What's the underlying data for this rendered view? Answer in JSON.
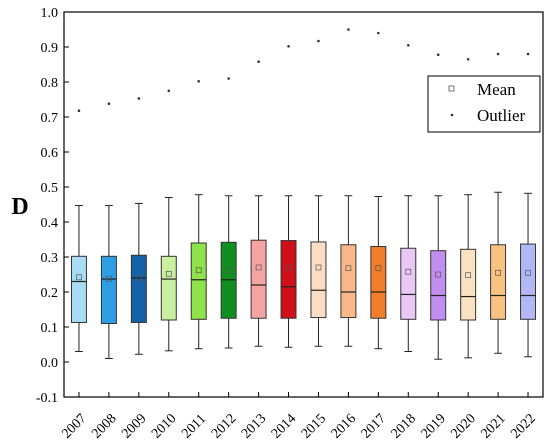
{
  "chart_data": {
    "type": "box",
    "ylabel": "D",
    "ylim": [
      -0.1,
      1.0
    ],
    "yticks": [
      "-0.1",
      "0.0",
      "0.1",
      "0.2",
      "0.3",
      "0.4",
      "0.5",
      "0.6",
      "0.7",
      "0.8",
      "0.9",
      "1.0"
    ],
    "categories": [
      "2007",
      "2008",
      "2009",
      "2010",
      "2011",
      "2012",
      "2013",
      "2014",
      "2015",
      "2016",
      "2017",
      "2018",
      "2019",
      "2020",
      "2021",
      "2022"
    ],
    "boxes": [
      {
        "category": "2007",
        "whisker_low": 0.03,
        "q1": 0.113,
        "median": 0.23,
        "q3": 0.302,
        "whisker_high": 0.447,
        "mean": 0.242,
        "outlier": 0.718,
        "color": "#a8dcf5"
      },
      {
        "category": "2008",
        "whisker_low": 0.01,
        "q1": 0.11,
        "median": 0.237,
        "q3": 0.302,
        "whisker_high": 0.447,
        "mean": 0.238,
        "outlier": 0.738,
        "color": "#2e9fe6"
      },
      {
        "category": "2009",
        "whisker_low": 0.022,
        "q1": 0.113,
        "median": 0.24,
        "q3": 0.305,
        "whisker_high": 0.453,
        "mean": 0.24,
        "outlier": 0.753,
        "color": "#1462a8"
      },
      {
        "category": "2010",
        "whisker_low": 0.032,
        "q1": 0.12,
        "median": 0.237,
        "q3": 0.302,
        "whisker_high": 0.47,
        "mean": 0.252,
        "outlier": 0.775,
        "color": "#c9efa0"
      },
      {
        "category": "2011",
        "whisker_low": 0.038,
        "q1": 0.122,
        "median": 0.235,
        "q3": 0.34,
        "whisker_high": 0.478,
        "mean": 0.262,
        "outlier": 0.802,
        "color": "#8ee24a"
      },
      {
        "category": "2012",
        "whisker_low": 0.04,
        "q1": 0.125,
        "median": 0.235,
        "q3": 0.342,
        "whisker_high": 0.475,
        "mean": 0.262,
        "outlier": 0.81,
        "color": "#0f8f1f"
      },
      {
        "category": "2013",
        "whisker_low": 0.045,
        "q1": 0.125,
        "median": 0.22,
        "q3": 0.348,
        "whisker_high": 0.475,
        "mean": 0.27,
        "outlier": 0.858,
        "color": "#f6a3a3"
      },
      {
        "category": "2014",
        "whisker_low": 0.042,
        "q1": 0.125,
        "median": 0.215,
        "q3": 0.347,
        "whisker_high": 0.475,
        "mean": 0.27,
        "outlier": 0.902,
        "color": "#d01018"
      },
      {
        "category": "2015",
        "whisker_low": 0.045,
        "q1": 0.127,
        "median": 0.205,
        "q3": 0.343,
        "whisker_high": 0.475,
        "mean": 0.27,
        "outlier": 0.917,
        "color": "#fbdcc4"
      },
      {
        "category": "2016",
        "whisker_low": 0.045,
        "q1": 0.127,
        "median": 0.2,
        "q3": 0.335,
        "whisker_high": 0.475,
        "mean": 0.268,
        "outlier": 0.95,
        "color": "#f8b88a"
      },
      {
        "category": "2017",
        "whisker_low": 0.038,
        "q1": 0.125,
        "median": 0.2,
        "q3": 0.33,
        "whisker_high": 0.473,
        "mean": 0.268,
        "outlier": 0.94,
        "color": "#f07e2a"
      },
      {
        "category": "2018",
        "whisker_low": 0.03,
        "q1": 0.122,
        "median": 0.193,
        "q3": 0.325,
        "whisker_high": 0.475,
        "mean": 0.258,
        "outlier": 0.905,
        "color": "#e8c8f4"
      },
      {
        "category": "2019",
        "whisker_low": 0.008,
        "q1": 0.12,
        "median": 0.19,
        "q3": 0.318,
        "whisker_high": 0.475,
        "mean": 0.25,
        "outlier": 0.878,
        "color": "#c08ef0"
      },
      {
        "category": "2020",
        "whisker_low": 0.012,
        "q1": 0.12,
        "median": 0.187,
        "q3": 0.322,
        "whisker_high": 0.478,
        "mean": 0.248,
        "outlier": 0.865,
        "color": "#f8e2c2"
      },
      {
        "category": "2021",
        "whisker_low": 0.025,
        "q1": 0.122,
        "median": 0.19,
        "q3": 0.335,
        "whisker_high": 0.485,
        "mean": 0.255,
        "outlier": 0.88,
        "color": "#f8c282"
      },
      {
        "category": "2022",
        "whisker_low": 0.015,
        "q1": 0.122,
        "median": 0.19,
        "q3": 0.337,
        "whisker_high": 0.482,
        "mean": 0.255,
        "outlier": 0.88,
        "color": "#b2b8f5"
      }
    ],
    "legend": {
      "placement": "top-right",
      "entries": [
        {
          "label": "Mean",
          "marker": "open-square"
        },
        {
          "label": "Outlier",
          "marker": "dot"
        }
      ]
    },
    "grid": false
  }
}
